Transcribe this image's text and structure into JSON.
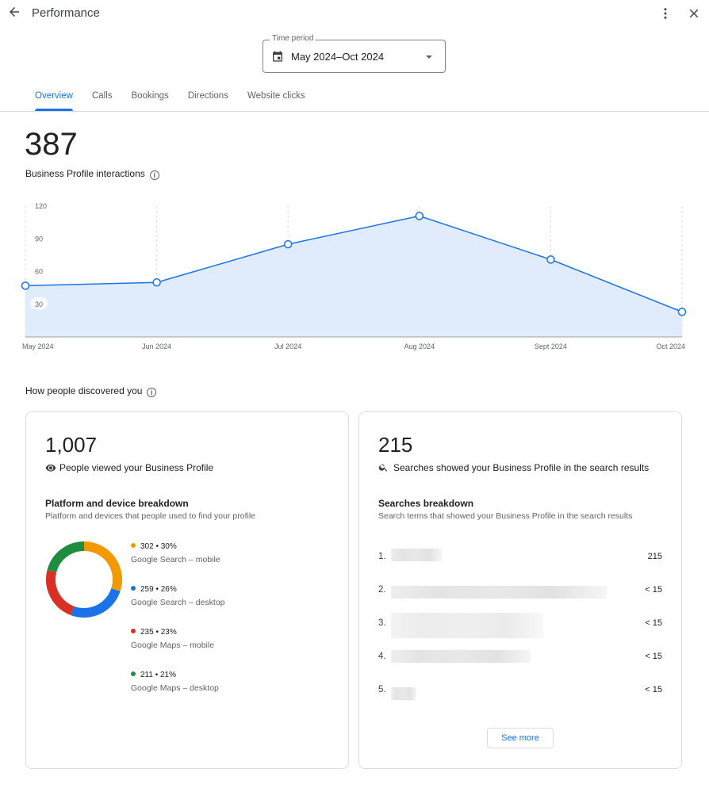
{
  "header": {
    "title": "Performance",
    "back_icon": "arrow-back-icon",
    "more_icon": "more-vert-icon",
    "close_icon": "close-icon"
  },
  "time_period": {
    "label": "Time period",
    "value": "May 2024–Oct 2024"
  },
  "tabs": [
    {
      "label": "Overview",
      "active": true
    },
    {
      "label": "Calls"
    },
    {
      "label": "Bookings"
    },
    {
      "label": "Directions"
    },
    {
      "label": "Website clicks"
    }
  ],
  "interactions": {
    "total": "387",
    "label": "Business Profile interactions"
  },
  "chart_data": {
    "type": "area",
    "categories": [
      "May 2024",
      "Jun 2024",
      "Jul 2024",
      "Aug 2024",
      "Sept 2024",
      "Oct 2024"
    ],
    "values": [
      47,
      50,
      85,
      111,
      71,
      23
    ],
    "yticks": [
      30,
      60,
      90,
      120
    ],
    "ylim": [
      0,
      120
    ],
    "color": "#1a73e8",
    "fill": "#e0ecfc"
  },
  "discovery": {
    "title": "How people discovered you"
  },
  "views_card": {
    "total": "1,007",
    "label": "People viewed your Business Profile",
    "breakdown_title": "Platform and device breakdown",
    "breakdown_subtitle": "Platform and devices that people used to find your profile",
    "chart_data": {
      "type": "pie",
      "segments": [
        {
          "value": 302,
          "stat": "302 • 30%",
          "name": "Google Search – mobile",
          "color": "#f29900"
        },
        {
          "value": 259,
          "stat": "259 • 26%",
          "name": "Google Search – desktop",
          "color": "#1a73e8"
        },
        {
          "value": 235,
          "stat": "235 • 23%",
          "name": "Google Maps – mobile",
          "color": "#d93025"
        },
        {
          "value": 211,
          "stat": "211 • 21%",
          "name": "Google Maps – desktop",
          "color": "#1e8e3e"
        }
      ]
    }
  },
  "searches_card": {
    "total": "215",
    "label": "Searches showed your Business Profile in the search results",
    "breakdown_title": "Searches breakdown",
    "breakdown_subtitle": "Search terms that showed your Business Profile in the search results",
    "rows": [
      {
        "rank": "1.",
        "count": "215"
      },
      {
        "rank": "2.",
        "count": "< 15"
      },
      {
        "rank": "3.",
        "count": "< 15"
      },
      {
        "rank": "4.",
        "count": "< 15"
      },
      {
        "rank": "5.",
        "count": "< 15"
      }
    ],
    "see_more": "See more"
  }
}
